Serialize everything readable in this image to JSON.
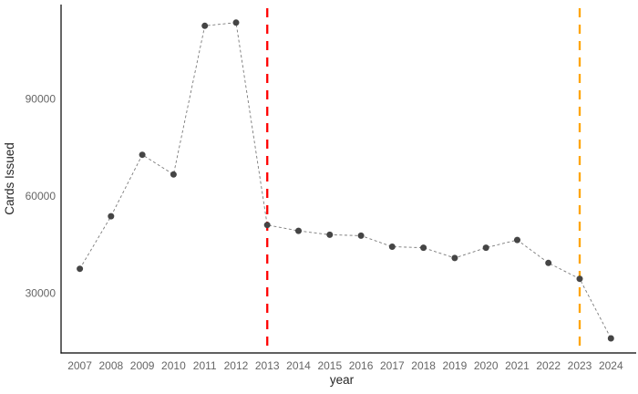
{
  "figure": {
    "background": "#ffffff"
  },
  "chart_data": {
    "type": "line",
    "title": "",
    "xlabel": "year",
    "ylabel": "Cards Issued",
    "x": [
      2007,
      2008,
      2009,
      2010,
      2011,
      2012,
      2013,
      2014,
      2015,
      2016,
      2017,
      2018,
      2019,
      2020,
      2021,
      2022,
      2023,
      2024
    ],
    "series": [
      {
        "name": "Cards Issued",
        "values": [
          37500,
          53700,
          72700,
          66600,
          112500,
          113500,
          51000,
          49200,
          48000,
          47700,
          44300,
          44000,
          40800,
          44000,
          46400,
          39300,
          34400,
          16000
        ],
        "marker": "circle",
        "point_color": "#454545",
        "line_color": "#7a7a7a",
        "line_style": "dashed"
      }
    ],
    "xticks": [
      2007,
      2008,
      2009,
      2010,
      2011,
      2012,
      2013,
      2014,
      2015,
      2016,
      2017,
      2018,
      2019,
      2020,
      2021,
      2022,
      2023,
      2024
    ],
    "yticks": [
      30000,
      60000,
      90000
    ],
    "xlim": [
      2006.4,
      2024.75
    ],
    "ylim": [
      11500,
      118500
    ],
    "grid": false,
    "legend": "none",
    "annotations": [
      {
        "type": "vline",
        "x": 2013,
        "color": "#ff0000",
        "style": "dashed"
      },
      {
        "type": "vline",
        "x": 2023,
        "color": "#ffa500",
        "style": "dashed"
      }
    ],
    "axis_color": "#000000",
    "tick_label_color": "#666666",
    "axis_title_color": "#262626"
  }
}
